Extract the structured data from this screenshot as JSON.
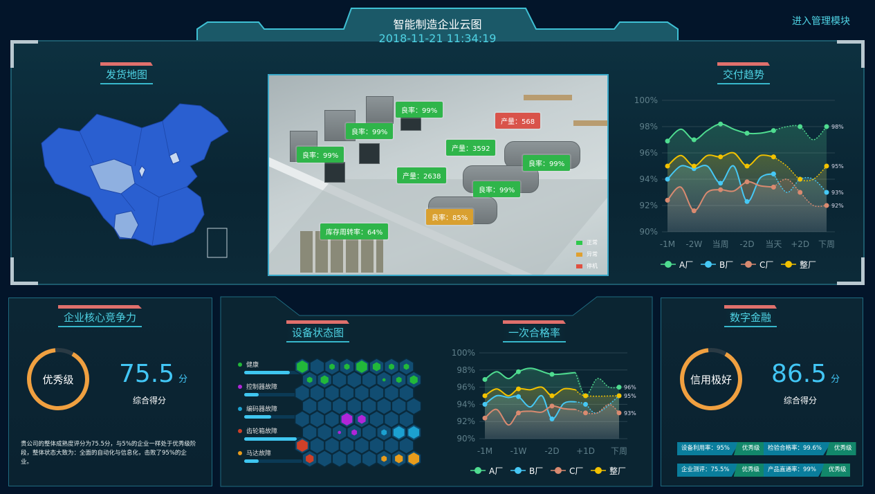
{
  "header": {
    "title": "智能制造企业云图",
    "datetime": "2018-11-21 11:34:19",
    "admin_link": "进入管理模块"
  },
  "colors": {
    "accent": "#4fd3e4",
    "title_bar": "#e0706c",
    "green": "#2fb54a",
    "orange": "#d9a030",
    "red": "#d9534a",
    "gauge": "#f0a040"
  },
  "map": {
    "title": "发货地图"
  },
  "scene": {
    "tags": [
      {
        "text": "良率：99%",
        "status": "normal"
      },
      {
        "text": "良率：99%",
        "status": "normal"
      },
      {
        "text": "良率：99%",
        "status": "normal"
      },
      {
        "text": "产量：568",
        "status": "stopped"
      },
      {
        "text": "产量：3592",
        "status": "normal"
      },
      {
        "text": "产量：2638",
        "status": "normal"
      },
      {
        "text": "良率：99%",
        "status": "normal"
      },
      {
        "text": "良率：99%",
        "status": "normal"
      },
      {
        "text": "良率：85%",
        "status": "abnormal"
      },
      {
        "text": "库存周转率：64%",
        "status": "normal"
      }
    ],
    "legend": [
      {
        "label": "正常",
        "color": "#2fc84c"
      },
      {
        "label": "异常",
        "color": "#e0a030"
      },
      {
        "label": "停机",
        "color": "#e05040"
      }
    ]
  },
  "delivery": {
    "title": "交付趋势"
  },
  "core": {
    "title": "企业核心竞争力",
    "grade": "优秀级",
    "score": "75.5",
    "unit": "分",
    "score_label": "综合得分",
    "gauge_fraction": 0.9,
    "description": "贵公司的整体成熟度评分为75.5分，与5%的企业一样处于优秀级阶段，整体状态大致为：全面的自动化与信息化，击败了95%的企业。"
  },
  "device": {
    "title": "设备状态图",
    "statuses": [
      {
        "label": "健康",
        "color": "#22b83a",
        "fraction": 0.78
      },
      {
        "label": "控制器故障",
        "color": "#b026d8",
        "fraction": 0.25
      },
      {
        "label": "编码器故障",
        "color": "#1ca0d0",
        "fraction": 0.47
      },
      {
        "label": "齿轮箱故障",
        "color": "#d04028",
        "fraction": 0.9
      },
      {
        "label": "马达故障",
        "color": "#e89c1c",
        "fraction": 0.25
      }
    ],
    "cells": [
      {
        "row": 0,
        "col": 0,
        "status": 0,
        "size": 3
      },
      {
        "row": 0,
        "col": 2,
        "status": 0,
        "size": 1
      },
      {
        "row": 0,
        "col": 3,
        "status": 0,
        "size": 1
      },
      {
        "row": 0,
        "col": 4,
        "status": 0,
        "size": 3
      },
      {
        "row": 0,
        "col": 5,
        "status": 0,
        "size": 2
      },
      {
        "row": 0,
        "col": 6,
        "status": 0,
        "size": 1
      },
      {
        "row": 0,
        "col": 7,
        "status": 0,
        "size": 1
      },
      {
        "row": 1,
        "col": 0,
        "status": 0,
        "size": 1
      },
      {
        "row": 1,
        "col": 1,
        "status": 0,
        "size": 2
      },
      {
        "row": 1,
        "col": 5,
        "status": 0,
        "size": 0
      },
      {
        "row": 1,
        "col": 6,
        "status": 0,
        "size": 1
      },
      {
        "row": 1,
        "col": 7,
        "status": 0,
        "size": 2
      },
      {
        "row": 4,
        "col": 3,
        "status": 1,
        "size": 3
      },
      {
        "row": 4,
        "col": 4,
        "status": 1,
        "size": 2
      },
      {
        "row": 5,
        "col": 2,
        "status": 1,
        "size": 0
      },
      {
        "row": 5,
        "col": 3,
        "status": 1,
        "size": 1
      },
      {
        "row": 5,
        "col": 5,
        "status": 2,
        "size": 1
      },
      {
        "row": 5,
        "col": 6,
        "status": 2,
        "size": 3
      },
      {
        "row": 5,
        "col": 7,
        "status": 2,
        "size": 3
      },
      {
        "row": 6,
        "col": 0,
        "status": 3,
        "size": 3
      },
      {
        "row": 7,
        "col": 0,
        "status": 3,
        "size": 2
      },
      {
        "row": 7,
        "col": 5,
        "status": 4,
        "size": 1
      },
      {
        "row": 7,
        "col": 6,
        "status": 4,
        "size": 2
      },
      {
        "row": 7,
        "col": 7,
        "status": 4,
        "size": 3
      }
    ]
  },
  "yield": {
    "title": "一次合格率"
  },
  "finance": {
    "title": "数字金融",
    "grade": "信用极好",
    "score": "86.5",
    "unit": "分",
    "score_label": "综合得分",
    "gauge_fraction": 0.9,
    "badges": [
      {
        "label": "设备利用率：95%",
        "grade": "优秀级"
      },
      {
        "label": "检验合格率：99.6%",
        "grade": "优秀级"
      },
      {
        "label": "企业测评：75.5%",
        "grade": "优秀级"
      },
      {
        "label": "产品直通率：99%",
        "grade": "优秀级"
      }
    ]
  },
  "chart_data": [
    {
      "type": "line",
      "id": "delivery-trend",
      "categories": [
        "-1M",
        "-2W",
        "当周",
        "-2D",
        "当天",
        "+2D",
        "下周"
      ],
      "ylim": [
        90,
        100
      ],
      "yticks": [
        "90%",
        "92%",
        "94%",
        "96%",
        "98%",
        "100%"
      ],
      "grid": true,
      "legend": "bottom",
      "series": [
        {
          "name": "A厂",
          "color": "#4fdc90",
          "solid": [
            [
              0,
              96.9
            ],
            [
              0.5,
              97.8
            ],
            [
              1,
              97
            ],
            [
              1.5,
              97.7
            ],
            [
              2,
              98.2
            ],
            [
              2.5,
              97.8
            ],
            [
              3,
              97.5
            ],
            [
              3.5,
              97.5
            ],
            [
              4,
              97.7
            ]
          ],
          "forecast": [
            [
              4,
              97.7
            ],
            [
              4.5,
              98
            ],
            [
              5,
              98
            ],
            [
              5.5,
              97
            ],
            [
              6,
              98
            ]
          ],
          "end_label": "98%"
        },
        {
          "name": "B厂",
          "color": "#46c8f5",
          "solid": [
            [
              0,
              94
            ],
            [
              0.5,
              95
            ],
            [
              1,
              94.8
            ],
            [
              1.5,
              95
            ],
            [
              2,
              93.7
            ],
            [
              2.5,
              95
            ],
            [
              3,
              92.3
            ],
            [
              3.5,
              94.1
            ],
            [
              4,
              94.4
            ]
          ],
          "forecast": [
            [
              4,
              94.4
            ],
            [
              4.5,
              93
            ],
            [
              5,
              94
            ],
            [
              5.5,
              94
            ],
            [
              6,
              93
            ]
          ],
          "end_label": "93%"
        },
        {
          "name": "C厂",
          "color": "#d98a70",
          "solid": [
            [
              0,
              92.4
            ],
            [
              0.5,
              93.4
            ],
            [
              1,
              91.6
            ],
            [
              1.5,
              93
            ],
            [
              2,
              93.2
            ],
            [
              2.5,
              93.1
            ],
            [
              3,
              93.8
            ],
            [
              3.5,
              93.5
            ],
            [
              4,
              93.4
            ]
          ],
          "forecast": [
            [
              4,
              93.4
            ],
            [
              4.5,
              94
            ],
            [
              5,
              93
            ],
            [
              5.5,
              92
            ],
            [
              6,
              92
            ]
          ],
          "end_label": "92%"
        },
        {
          "name": "整厂",
          "color": "#f2c200",
          "solid": [
            [
              0,
              95
            ],
            [
              0.5,
              95.8
            ],
            [
              1,
              95
            ],
            [
              1.5,
              95.8
            ],
            [
              2,
              95.7
            ],
            [
              2.5,
              96
            ],
            [
              3,
              95
            ],
            [
              3.5,
              95.8
            ],
            [
              4,
              95.7
            ]
          ],
          "forecast": [
            [
              4,
              95.7
            ],
            [
              4.5,
              95
            ],
            [
              5,
              94
            ],
            [
              5.5,
              94
            ],
            [
              6,
              95
            ]
          ],
          "end_label": "95%"
        }
      ]
    },
    {
      "type": "line",
      "id": "first-pass-yield",
      "categories": [
        "-1M",
        "-1W",
        "-2D",
        "+1D",
        "下周"
      ],
      "ylim": [
        90,
        100
      ],
      "yticks": [
        "90%",
        "92%",
        "94%",
        "96%",
        "98%",
        "100%"
      ],
      "grid": true,
      "legend": "bottom",
      "series": [
        {
          "name": "A厂",
          "color": "#4fdc90",
          "solid": [
            [
              0,
              96.9
            ],
            [
              0.35,
              97.8
            ],
            [
              0.7,
              97
            ],
            [
              1,
              97.8
            ],
            [
              1.4,
              98.2
            ],
            [
              2,
              97.5
            ],
            [
              2.7,
              97.7
            ]
          ],
          "forecast": [
            [
              2.7,
              97.7
            ],
            [
              3,
              95
            ],
            [
              3.35,
              97
            ],
            [
              3.7,
              96
            ],
            [
              4,
              96
            ]
          ],
          "end_label": "96%"
        },
        {
          "name": "B厂",
          "color": "#46c8f5",
          "solid": [
            [
              0,
              94
            ],
            [
              0.35,
              95
            ],
            [
              0.7,
              94.8
            ],
            [
              1,
              94.9
            ],
            [
              1.35,
              93.7
            ],
            [
              1.7,
              95
            ],
            [
              2,
              92.3
            ],
            [
              2.35,
              94.1
            ],
            [
              2.7,
              94.3
            ]
          ],
          "forecast": [
            [
              2.7,
              94.3
            ],
            [
              3,
              94
            ],
            [
              3.35,
              93
            ],
            [
              4,
              95
            ]
          ],
          "end_label": "95%"
        },
        {
          "name": "C厂",
          "color": "#d98a70",
          "solid": [
            [
              0,
              92.4
            ],
            [
              0.35,
              93.4
            ],
            [
              0.7,
              91.6
            ],
            [
              1,
              93
            ],
            [
              1.35,
              93.2
            ],
            [
              1.7,
              93.1
            ],
            [
              2,
              93.8
            ],
            [
              2.35,
              93.5
            ],
            [
              2.7,
              93.4
            ]
          ],
          "forecast": [
            [
              2.7,
              93.4
            ],
            [
              3,
              93
            ],
            [
              3.35,
              93
            ],
            [
              3.7,
              94
            ],
            [
              4,
              93
            ]
          ],
          "end_label": "93%"
        },
        {
          "name": "整厂",
          "color": "#f2c200",
          "solid": [
            [
              0,
              95
            ],
            [
              0.35,
              95.8
            ],
            [
              0.7,
              95
            ],
            [
              1,
              95.8
            ],
            [
              1.35,
              95.7
            ],
            [
              1.7,
              96
            ],
            [
              2,
              95
            ],
            [
              2.35,
              95.8
            ],
            [
              2.7,
              95.7
            ]
          ],
          "forecast": [
            [
              2.7,
              95.7
            ],
            [
              3,
              95
            ],
            [
              4,
              95
            ]
          ],
          "end_label": ""
        }
      ]
    }
  ]
}
